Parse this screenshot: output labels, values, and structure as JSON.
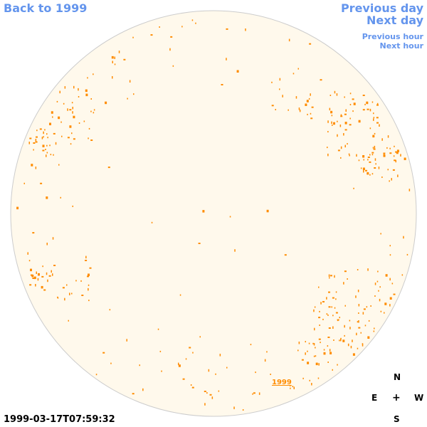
{
  "nav": {
    "back": "Back to 1999",
    "previous_day": "Previous day",
    "next_day": "Next day",
    "previous_hour": "Previous hour",
    "next_hour": "Next hour"
  },
  "disk": {
    "fill_color": "#fff9ec",
    "outline_color": "#cccccc",
    "feature_color": "#ff8c00",
    "year_label": "1999"
  },
  "compass": {
    "north": "N",
    "south": "S",
    "east": "E",
    "west": "W",
    "center": "+"
  },
  "timestamp": "1999-03-17T07:59:32"
}
